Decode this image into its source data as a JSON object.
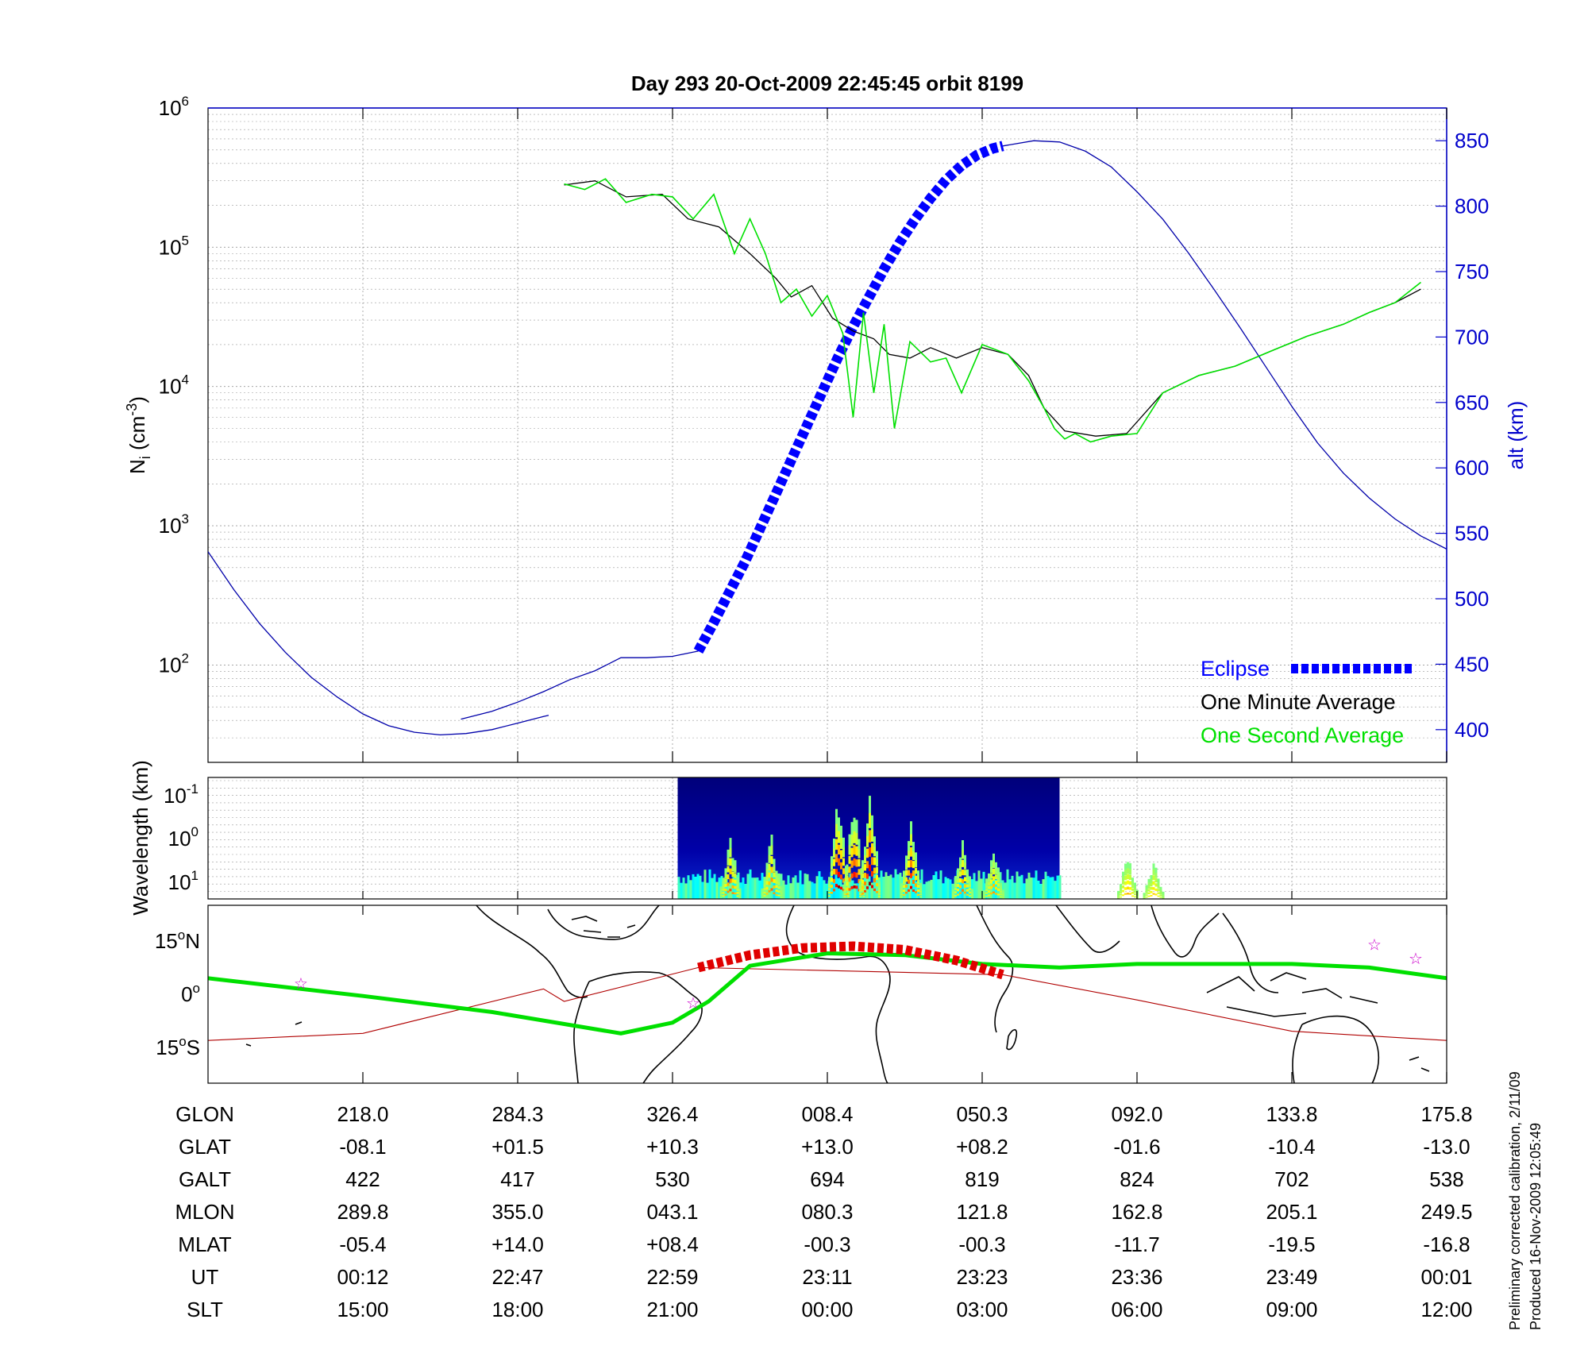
{
  "title": "Day 293  20-Oct-2009 22:45:45   orbit 8199",
  "colors": {
    "eclipse": "#0000ff",
    "altitude": "#0000aa",
    "one_minute": "#000000",
    "one_second": "#00e000",
    "track_eclipse": "#e00000",
    "track_thin": "#b00000",
    "stars": "#cc00cc"
  },
  "chart_data": [
    {
      "type": "line",
      "panel": "ion-density",
      "ylabel": "N",
      "ylabel_sub": "i",
      "ylabel_unit": " (cm",
      "ylabel_exp": "-3",
      "ylabel_close": ")",
      "y_scale": "log",
      "ylim": [
        20,
        1000000
      ],
      "y_ticks": [
        {
          "base": "10",
          "exp": "2",
          "value": 100
        },
        {
          "base": "10",
          "exp": "3",
          "value": 1000
        },
        {
          "base": "10",
          "exp": "4",
          "value": 10000
        },
        {
          "base": "10",
          "exp": "5",
          "value": 100000
        },
        {
          "base": "10",
          "exp": "6",
          "value": 1000000
        }
      ],
      "y2label": "alt (km)",
      "y2lim": [
        375,
        875
      ],
      "y2_ticks": [
        "400",
        "450",
        "500",
        "550",
        "600",
        "650",
        "700",
        "750",
        "800",
        "850"
      ],
      "x_ticks_slt": [
        "15:00",
        "18:00",
        "21:00",
        "00:00",
        "03:00",
        "06:00",
        "09:00",
        "12:00"
      ],
      "grid": true,
      "legend_position": "bottom-right",
      "series": [
        {
          "name": "Eclipse",
          "style": "thick-dashed",
          "color": "#0000ff",
          "axis": "alt",
          "x": [
            21.5,
            21.8,
            22.1,
            22.4,
            22.7,
            23.0,
            23.3,
            23.6,
            23.9,
            24.2,
            24.5,
            24.8,
            25.1,
            25.4,
            25.7,
            26.0,
            26.3,
            26.6,
            26.9,
            27.2,
            27.4
          ],
          "y": [
            460,
            482,
            505,
            528,
            554,
            580,
            606,
            632,
            658,
            684,
            708,
            730,
            752,
            772,
            790,
            806,
            820,
            831,
            839,
            844,
            846
          ]
        },
        {
          "name": "altitude",
          "style": "thin",
          "color": "#0000aa",
          "axis": "alt",
          "segments": [
            {
              "x": [
                12.0,
                12.5,
                13.0,
                13.5,
                14.0,
                14.5,
                15.0,
                15.5,
                16.0,
                16.5,
                17.0,
                17.5,
                18.0,
                18.5,
                18.6
              ],
              "y": [
                536,
                507,
                481,
                459,
                440,
                425,
                412,
                403,
                398,
                396,
                397,
                400,
                405,
                410,
                411
              ]
            },
            {
              "x": [
                16.9,
                17.5,
                18.0,
                18.5,
                19.0,
                19.5,
                20.0,
                20.5,
                21.0,
                21.5
              ],
              "y": [
                408,
                414,
                421,
                429,
                438,
                445,
                455,
                455,
                456,
                460
              ]
            },
            {
              "x": [
                27.4,
                28.0,
                28.5,
                29.0,
                29.5,
                30.0,
                30.5,
                31.0,
                31.5,
                32.0,
                32.5,
                33.0,
                33.5,
                34.0,
                34.5,
                35.0,
                35.5,
                36.0
              ],
              "y": [
                846,
                850,
                849,
                842,
                830,
                811,
                790,
                764,
                736,
                707,
                677,
                647,
                619,
                596,
                577,
                561,
                548,
                538
              ]
            }
          ]
        },
        {
          "name": "One Minute Average",
          "style": "thin",
          "color": "#000000",
          "axis": "ni",
          "x": [
            18.9,
            19.5,
            20.1,
            20.8,
            21.3,
            21.9,
            22.5,
            23.0,
            23.3,
            23.7,
            24.1,
            24.5,
            24.9,
            25.2,
            25.6,
            26.0,
            26.5,
            27.0,
            27.5,
            27.9,
            28.2,
            28.6,
            29.2,
            29.8,
            30.5,
            31.2,
            31.9,
            32.6,
            33.3,
            34.0,
            34.5,
            35.0,
            35.5
          ],
          "y": [
            280000,
            300000,
            230000,
            240000,
            160000,
            140000,
            90000,
            60000,
            44000,
            53000,
            31000,
            25000,
            22000,
            17000,
            16000,
            19000,
            16000,
            19000,
            17000,
            12000,
            7000,
            4800,
            4400,
            4600,
            9000,
            12000,
            14000,
            18000,
            23000,
            28000,
            34000,
            40000,
            50000
          ]
        },
        {
          "name": "One Second Average",
          "style": "thin",
          "color": "#00e000",
          "axis": "ni",
          "x": [
            18.9,
            19.3,
            19.7,
            20.1,
            20.6,
            21.0,
            21.4,
            21.8,
            22.2,
            22.5,
            22.8,
            23.1,
            23.4,
            23.7,
            24.0,
            24.3,
            24.5,
            24.7,
            24.9,
            25.1,
            25.3,
            25.6,
            26.0,
            26.3,
            26.6,
            27.0,
            27.5,
            27.9,
            28.2,
            28.4,
            28.6,
            28.8,
            29.1,
            29.5,
            30.0,
            30.5,
            31.2,
            31.9,
            32.6,
            33.3,
            34.0,
            34.5,
            35.0,
            35.5
          ],
          "y": [
            285000,
            260000,
            310000,
            210000,
            240000,
            230000,
            160000,
            240000,
            90000,
            160000,
            90000,
            40000,
            50000,
            32000,
            45000,
            24000,
            6000,
            34000,
            9000,
            28000,
            5000,
            21000,
            15000,
            16000,
            9000,
            20000,
            17000,
            11000,
            7000,
            5000,
            4200,
            4600,
            4000,
            4400,
            4600,
            9000,
            12000,
            14000,
            18000,
            23000,
            28000,
            34000,
            40000,
            56000
          ]
        }
      ]
    },
    {
      "type": "heatmap",
      "panel": "wavelength-spectrogram",
      "ylabel": "Wavelength (km)",
      "y_ticks": [
        {
          "base": "10",
          "exp": "-1"
        },
        {
          "base": "10",
          "exp": "0"
        },
        {
          "base": "10",
          "exp": "1"
        }
      ],
      "x_range_slt": [
        21.1,
        28.5
      ],
      "colormap": "jet",
      "note_active_ranges_slt": [
        {
          "center": 22.1,
          "intensity": 0.6
        },
        {
          "center": 22.9,
          "intensity": 0.55
        },
        {
          "center": 24.2,
          "intensity": 0.95
        },
        {
          "center": 24.5,
          "intensity": 0.9
        },
        {
          "center": 24.8,
          "intensity": 1.0
        },
        {
          "center": 25.6,
          "intensity": 0.8
        },
        {
          "center": 26.6,
          "intensity": 0.5
        },
        {
          "center": 27.2,
          "intensity": 0.45
        },
        {
          "center": 29.8,
          "intensity": 0.4
        },
        {
          "center": 30.3,
          "intensity": 0.35
        }
      ]
    },
    {
      "type": "line",
      "panel": "ground-track-map",
      "y_ticks": [
        {
          "label": "15",
          "deg": "o",
          "hemi": "N",
          "value": 15
        },
        {
          "label": "0",
          "deg": "o",
          "hemi": "",
          "value": 0
        },
        {
          "label": "15",
          "deg": "o",
          "hemi": "S",
          "value": -15
        }
      ],
      "ylim": [
        -25,
        25
      ],
      "series": [
        {
          "name": "magnetic-equator",
          "color": "#00e000",
          "x_slt": [
            12.0,
            15.0,
            17.5,
            20.0,
            21.0,
            21.7,
            22.5,
            24.0,
            25.5,
            27.0,
            28.5,
            30.0,
            31.5,
            33.0,
            34.5,
            36.0
          ],
          "y": [
            4.5,
            -0.5,
            -5.0,
            -11.0,
            -8.0,
            -2.0,
            8.0,
            11.5,
            11.0,
            8.5,
            7.5,
            8.5,
            8.5,
            8.5,
            7.5,
            4.5
          ]
        },
        {
          "name": "orbit-track-eclipse",
          "color": "#e00000",
          "x_slt": [
            21.5,
            22.5,
            23.5,
            24.5,
            25.5,
            26.5,
            27.4
          ],
          "y": [
            7.5,
            11.0,
            13.0,
            13.5,
            12.5,
            9.5,
            5.5
          ]
        }
      ],
      "stars": [
        {
          "x_slt": 13.8,
          "y": 3.0
        },
        {
          "x_slt": 21.4,
          "y": -2.5
        },
        {
          "x_slt": 34.6,
          "y": 14.0
        },
        {
          "x_slt": 35.4,
          "y": 10.0
        }
      ]
    }
  ],
  "legend": {
    "eclipse": "Eclipse",
    "one_minute": "One Minute Average",
    "one_second": "One Second Average"
  },
  "orbit_table": {
    "rows": [
      {
        "label": "GLON",
        "values": [
          "218.0",
          "284.3",
          "326.4",
          "008.4",
          "050.3",
          "092.0",
          "133.8",
          "175.8"
        ]
      },
      {
        "label": "GLAT",
        "values": [
          "-08.1",
          "+01.5",
          "+10.3",
          "+13.0",
          "+08.2",
          "-01.6",
          "-10.4",
          "-13.0"
        ]
      },
      {
        "label": "GALT",
        "values": [
          "422",
          "417",
          "530",
          "694",
          "819",
          "824",
          "702",
          "538"
        ]
      },
      {
        "label": "MLON",
        "values": [
          "289.8",
          "355.0",
          "043.1",
          "080.3",
          "121.8",
          "162.8",
          "205.1",
          "249.5"
        ]
      },
      {
        "label": "MLAT",
        "values": [
          "-05.4",
          "+14.0",
          "+08.4",
          "-00.3",
          "-00.3",
          "-11.7",
          "-19.5",
          "-16.8"
        ]
      },
      {
        "label": "UT",
        "values": [
          "00:12",
          "22:47",
          "22:59",
          "23:11",
          "23:23",
          "23:36",
          "23:49",
          "00:01"
        ]
      },
      {
        "label": "SLT",
        "values": [
          "15:00",
          "18:00",
          "21:00",
          "00:00",
          "03:00",
          "06:00",
          "09:00",
          "12:00"
        ]
      }
    ]
  },
  "footer": {
    "line1": "Preliminary corrected calibration, 2/11/09",
    "line2": "Produced 16-Nov-2009 12:05:49"
  }
}
